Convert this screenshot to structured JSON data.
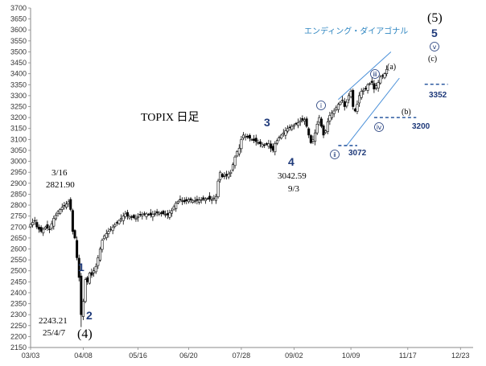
{
  "chart_data": {
    "type": "candlestick",
    "title": "TOPIX 日足",
    "subtitle": "エンディング・ダイアゴナル",
    "ylim": [
      2150,
      3700
    ],
    "y_ticks": [
      2150,
      2200,
      2250,
      2300,
      2350,
      2400,
      2450,
      2500,
      2550,
      2600,
      2650,
      2700,
      2750,
      2800,
      2850,
      2900,
      2950,
      3000,
      3050,
      3100,
      3150,
      3200,
      3250,
      3300,
      3350,
      3400,
      3450,
      3500,
      3550,
      3600,
      3650,
      3700
    ],
    "x_ticks": [
      "03/03",
      "04/08",
      "05/16",
      "06/20",
      "07/28",
      "09/02",
      "10/09",
      "11/17",
      "12/23"
    ],
    "x_tick_positions": [
      0,
      25,
      51,
      75,
      100,
      125,
      152,
      179,
      204
    ],
    "price_series": [
      [
        0,
        2712
      ],
      [
        2,
        2730
      ],
      [
        3,
        2700
      ],
      [
        5,
        2680
      ],
      [
        7,
        2700
      ],
      [
        9,
        2690
      ],
      [
        11,
        2740
      ],
      [
        13,
        2770
      ],
      [
        15,
        2790
      ],
      [
        17,
        2805
      ],
      [
        18,
        2815
      ],
      [
        19,
        2780
      ],
      [
        20,
        2680
      ],
      [
        21,
        2650
      ],
      [
        22,
        2560
      ],
      [
        23,
        2470
      ],
      [
        24,
        2300
      ],
      [
        25,
        2360
      ],
      [
        26,
        2460
      ],
      [
        27,
        2450
      ],
      [
        28,
        2490
      ],
      [
        29,
        2480
      ],
      [
        30,
        2500
      ],
      [
        31,
        2520
      ],
      [
        32,
        2560
      ],
      [
        33,
        2600
      ],
      [
        34,
        2640
      ],
      [
        35,
        2660
      ],
      [
        37,
        2680
      ],
      [
        39,
        2700
      ],
      [
        41,
        2720
      ],
      [
        43,
        2740
      ],
      [
        45,
        2760
      ],
      [
        46,
        2750
      ],
      [
        48,
        2745
      ],
      [
        50,
        2740
      ],
      [
        52,
        2755
      ],
      [
        55,
        2760
      ],
      [
        57,
        2755
      ],
      [
        60,
        2765
      ],
      [
        63,
        2760
      ],
      [
        65,
        2755
      ],
      [
        67,
        2775
      ],
      [
        69,
        2810
      ],
      [
        71,
        2825
      ],
      [
        73,
        2815
      ],
      [
        75,
        2825
      ],
      [
        78,
        2820
      ],
      [
        81,
        2825
      ],
      [
        84,
        2830
      ],
      [
        86,
        2825
      ],
      [
        88,
        2840
      ],
      [
        89,
        2910
      ],
      [
        90,
        2950
      ],
      [
        91,
        2930
      ],
      [
        93,
        2935
      ],
      [
        95,
        2950
      ],
      [
        97,
        3020
      ],
      [
        98,
        3045
      ],
      [
        99,
        3060
      ],
      [
        100,
        3100
      ],
      [
        101,
        3120
      ],
      [
        103,
        3110
      ],
      [
        105,
        3100
      ],
      [
        107,
        3090
      ],
      [
        109,
        3080
      ],
      [
        111,
        3075
      ],
      [
        113,
        3080
      ],
      [
        114,
        3060
      ],
      [
        115,
        3050
      ],
      [
        116,
        3080
      ],
      [
        118,
        3110
      ],
      [
        120,
        3130
      ],
      [
        122,
        3150
      ],
      [
        124,
        3160
      ],
      [
        126,
        3170
      ],
      [
        128,
        3185
      ],
      [
        130,
        3190
      ],
      [
        131,
        3160
      ],
      [
        132,
        3120
      ],
      [
        133,
        3085
      ],
      [
        134,
        3100
      ],
      [
        135,
        3130
      ],
      [
        136,
        3170
      ],
      [
        137,
        3200
      ],
      [
        138,
        3160
      ],
      [
        139,
        3120
      ],
      [
        140,
        3140
      ],
      [
        141,
        3180
      ],
      [
        142,
        3210
      ],
      [
        144,
        3230
      ],
      [
        146,
        3260
      ],
      [
        148,
        3280
      ],
      [
        149,
        3250
      ],
      [
        150,
        3270
      ],
      [
        151,
        3300
      ],
      [
        152,
        3320
      ],
      [
        153,
        3250
      ],
      [
        154,
        3230
      ],
      [
        155,
        3260
      ],
      [
        156,
        3300
      ],
      [
        157,
        3320
      ],
      [
        159,
        3330
      ],
      [
        160,
        3350
      ],
      [
        162,
        3360
      ],
      [
        163,
        3330
      ],
      [
        164,
        3345
      ],
      [
        165,
        3360
      ],
      [
        166,
        3385
      ],
      [
        167,
        3390
      ],
      [
        168,
        3400
      ],
      [
        169,
        3420
      ]
    ],
    "annotations": {
      "high_date": "3/16",
      "high_value": "2821.90",
      "low_value": "2243.21",
      "low_date": "25/4/7",
      "wave4_value": "3042.59",
      "wave4_date": "9/3"
    },
    "wave_labels": [
      "1",
      "2",
      "3",
      "4",
      "5"
    ],
    "degree_labels": [
      "(4)",
      "(5)"
    ],
    "subwave_labels": [
      "ⅰ",
      "ⅱ",
      "ⅲ",
      "ⅳ",
      "ⅴ",
      "(a)",
      "(b)",
      "(c)"
    ],
    "levels": [
      "3072",
      "3200",
      "3352"
    ],
    "colors": {
      "candle": "#000000",
      "axis": "#888888",
      "wave": "#1f3a7a",
      "channel": "#4a90d9",
      "level": "#2c5aa0",
      "subtitle": "#2e86c1"
    }
  }
}
